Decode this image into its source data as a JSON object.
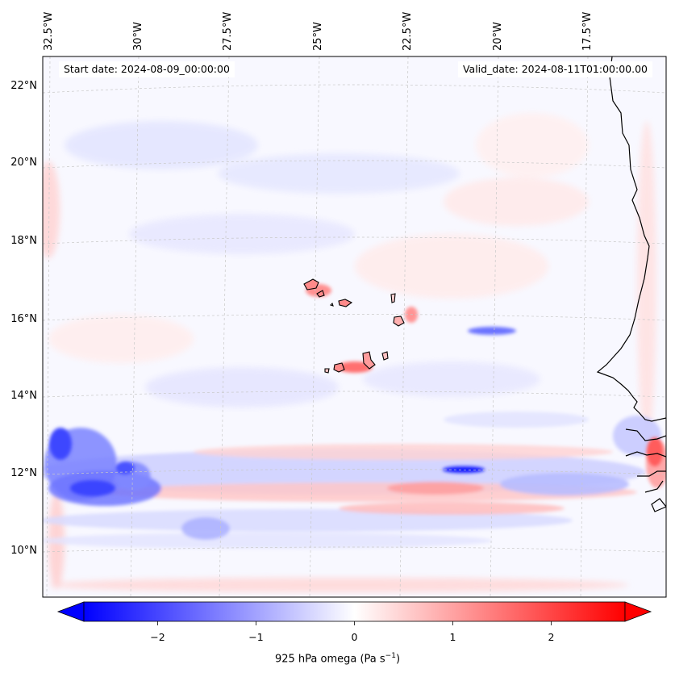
{
  "map": {
    "info_left": "Start date: 2024-08-09_00:00:00",
    "info_right": "Valid_date: 2024-08-11T01:00:00.00",
    "lon_labels": [
      "32.5°W",
      "30°W",
      "27.5°W",
      "25°W",
      "22.5°W",
      "20°W",
      "17.5°W"
    ],
    "lat_labels": [
      "22°N",
      "20°N",
      "18°N",
      "16°N",
      "14°N",
      "12°N",
      "10°N"
    ],
    "lon_values": [
      -32.5,
      -30,
      -27.5,
      -25,
      -22.5,
      -20,
      -17.5
    ],
    "lat_values": [
      22,
      20,
      18,
      16,
      14,
      12,
      10
    ],
    "colors": {
      "negative": "#0000ff",
      "zero": "#ffffff",
      "positive": "#ff0000",
      "coast": "#000000",
      "grid": "#b8b8b8"
    }
  },
  "colorbar": {
    "label": "925 hPa omega (Pa s",
    "label_sup": "−1",
    "label_close": ")",
    "tick_values": [
      -2,
      -1,
      0,
      1,
      2
    ],
    "tick_labels": [
      "−2",
      "−1",
      "0",
      "1",
      "2"
    ],
    "vmin": -2.75,
    "vmax": 2.75
  }
}
